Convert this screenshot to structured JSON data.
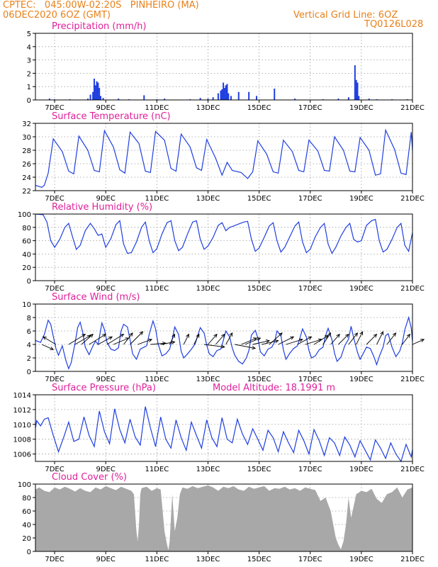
{
  "header": {
    "line1": "CPTEC:   045:00W-02:20S   PINHEIRO (MA)",
    "line2": "06DEC2020 6OZ (GMT)",
    "vgrid": "Vertical Grid Line: 6OZ",
    "code": "TQ0126L028"
  },
  "colors": {
    "header": "#e8801a",
    "title": "#e0209a",
    "series": "#1f3fe0",
    "cloud": "#a8a8a8",
    "axis": "#000000"
  },
  "x_axis": {
    "start_day": 6.25,
    "end_day": 21,
    "tick_days": [
      7,
      9,
      11,
      13,
      15,
      17,
      19,
      21
    ],
    "tick_labels": [
      "7DEC",
      "9DEC",
      "11DEC",
      "13DEC",
      "15DEC",
      "17DEC",
      "19DEC",
      "21DEC"
    ]
  },
  "chart_data": [
    {
      "type": "bar",
      "title": "Precipitation (mm/h)",
      "ylim": [
        0,
        5
      ],
      "yticks": [
        0,
        1,
        2,
        3,
        4,
        5
      ],
      "grid": true,
      "x": [
        6.8,
        7.0,
        7.6,
        8.3,
        8.4,
        8.5,
        8.55,
        8.6,
        8.65,
        8.7,
        8.75,
        8.8,
        8.9,
        9.5,
        9.9,
        10.5,
        11.0,
        11.3,
        12.3,
        12.7,
        13.0,
        13.2,
        13.4,
        13.5,
        13.55,
        13.6,
        13.65,
        13.7,
        13.75,
        13.8,
        13.9,
        14.2,
        14.6,
        14.9,
        15.6,
        16.4,
        17.5,
        18.1,
        18.5,
        18.75,
        18.8,
        18.85,
        18.9,
        19.3,
        19.6,
        20.2,
        20.8
      ],
      "y": [
        0.1,
        0.05,
        0.05,
        0.1,
        0.4,
        0.6,
        1.6,
        1.1,
        1.4,
        1.3,
        0.9,
        0.3,
        0.15,
        0.1,
        0.05,
        0.35,
        0.05,
        0.1,
        0.05,
        0.15,
        0.1,
        0.2,
        0.5,
        0.7,
        0.8,
        1.3,
        0.9,
        1.1,
        1.2,
        0.5,
        0.3,
        0.6,
        0.6,
        0.3,
        0.85,
        0.1,
        0.05,
        0.1,
        0.2,
        2.6,
        1.5,
        1.3,
        0.3,
        0.1,
        0.05,
        0.05,
        0.05
      ]
    },
    {
      "type": "line",
      "title": "Surface Temperature (nC)",
      "ylim": [
        22,
        32
      ],
      "yticks": [
        22,
        24,
        26,
        28,
        30,
        32
      ],
      "grid": true,
      "x": [
        6.25,
        6.5,
        6.6,
        6.75,
        6.95,
        7.3,
        7.55,
        7.75,
        7.95,
        8.3,
        8.55,
        8.75,
        8.95,
        9.3,
        9.55,
        9.75,
        9.95,
        10.3,
        10.55,
        10.75,
        10.95,
        11.3,
        11.55,
        11.75,
        11.95,
        12.3,
        12.55,
        12.75,
        12.95,
        13.3,
        13.55,
        13.75,
        13.95,
        14.3,
        14.55,
        14.75,
        14.95,
        15.3,
        15.55,
        15.75,
        15.95,
        16.3,
        16.55,
        16.75,
        16.95,
        17.3,
        17.55,
        17.75,
        17.95,
        18.3,
        18.55,
        18.75,
        18.95,
        19.3,
        19.55,
        19.75,
        19.95,
        20.3,
        20.55,
        20.75,
        20.95,
        21.0
      ],
      "y": [
        22.8,
        22.5,
        22.8,
        24.6,
        29.7,
        27.8,
        24.9,
        24.5,
        30.1,
        28.0,
        25.0,
        24.8,
        30.9,
        28.5,
        25.1,
        24.6,
        30.7,
        29.0,
        24.9,
        24.7,
        30.8,
        29.5,
        25.3,
        24.9,
        30.4,
        28.5,
        25.4,
        25.0,
        29.6,
        26.8,
        24.3,
        26.2,
        25.0,
        24.7,
        23.8,
        24.8,
        29.4,
        27.4,
        24.8,
        24.6,
        29.5,
        27.8,
        25.0,
        24.8,
        29.5,
        27.9,
        25.0,
        24.9,
        30.0,
        28.0,
        24.9,
        24.8,
        29.9,
        28.0,
        24.3,
        24.5,
        31.0,
        28.1,
        24.6,
        24.4,
        30.7,
        28.0
      ]
    },
    {
      "type": "line",
      "title": "Relative Humidity (%)",
      "ylim": [
        0,
        100
      ],
      "yticks": [
        0,
        20,
        40,
        60,
        80,
        100
      ],
      "grid": true,
      "x": [
        6.25,
        6.55,
        6.7,
        6.85,
        7.0,
        7.2,
        7.4,
        7.55,
        7.7,
        7.85,
        8.0,
        8.2,
        8.4,
        8.55,
        8.7,
        8.85,
        9.0,
        9.2,
        9.4,
        9.55,
        9.7,
        9.85,
        10.0,
        10.2,
        10.4,
        10.55,
        10.7,
        10.85,
        11.0,
        11.2,
        11.4,
        11.55,
        11.7,
        11.85,
        12.0,
        12.2,
        12.4,
        12.55,
        12.7,
        12.85,
        13.0,
        13.2,
        13.4,
        13.55,
        13.7,
        13.85,
        14.0,
        14.2,
        14.4,
        14.55,
        14.7,
        14.85,
        15.0,
        15.2,
        15.4,
        15.55,
        15.7,
        15.85,
        16.0,
        16.2,
        16.4,
        16.55,
        16.7,
        16.85,
        17.0,
        17.2,
        17.4,
        17.55,
        17.7,
        17.85,
        18.0,
        18.2,
        18.4,
        18.55,
        18.7,
        18.85,
        19.0,
        19.2,
        19.4,
        19.55,
        19.7,
        19.85,
        20.0,
        20.2,
        20.4,
        20.55,
        20.7,
        20.85,
        21.0
      ],
      "y": [
        100,
        99,
        88,
        60,
        50,
        62,
        80,
        86,
        66,
        47,
        53,
        75,
        86,
        78,
        68,
        70,
        50,
        63,
        84,
        90,
        55,
        41,
        42,
        58,
        80,
        88,
        60,
        42,
        48,
        70,
        87,
        90,
        60,
        45,
        50,
        70,
        88,
        90,
        62,
        47,
        52,
        65,
        83,
        87,
        75,
        80,
        82,
        85,
        88,
        89,
        62,
        44,
        49,
        65,
        82,
        87,
        60,
        43,
        50,
        66,
        82,
        88,
        58,
        42,
        47,
        66,
        80,
        86,
        55,
        41,
        50,
        67,
        80,
        86,
        62,
        58,
        60,
        83,
        90,
        92,
        60,
        43,
        47,
        62,
        80,
        86,
        53,
        44,
        72
      ]
    },
    {
      "type": "line",
      "title": "Surface Wind (m/s)",
      "ylim": [
        0,
        10
      ],
      "yticks": [
        0,
        2,
        4,
        6,
        8,
        10
      ],
      "grid": true,
      "x": [
        6.25,
        6.45,
        6.6,
        6.75,
        6.85,
        6.95,
        7.05,
        7.15,
        7.3,
        7.45,
        7.55,
        7.65,
        7.8,
        7.9,
        8.0,
        8.1,
        8.2,
        8.35,
        8.5,
        8.6,
        8.7,
        8.85,
        8.95,
        9.05,
        9.2,
        9.35,
        9.5,
        9.6,
        9.7,
        9.85,
        9.95,
        10.05,
        10.2,
        10.35,
        10.5,
        10.6,
        10.7,
        10.85,
        10.95,
        11.05,
        11.2,
        11.35,
        11.5,
        11.6,
        11.7,
        11.85,
        11.95,
        12.05,
        12.2,
        12.35,
        12.5,
        12.6,
        12.7,
        12.85,
        12.95,
        13.05,
        13.2,
        13.35,
        13.5,
        13.6,
        13.7,
        13.85,
        13.95,
        14.05,
        14.2,
        14.35,
        14.5,
        14.6,
        14.7,
        14.85,
        14.95,
        15.05,
        15.2,
        15.35,
        15.5,
        15.6,
        15.7,
        15.85,
        15.95,
        16.05,
        16.2,
        16.35,
        16.5,
        16.6,
        16.7,
        16.85,
        16.95,
        17.05,
        17.2,
        17.35,
        17.5,
        17.6,
        17.7,
        17.85,
        17.95,
        18.05,
        18.2,
        18.35,
        18.5,
        18.6,
        18.7,
        18.85,
        18.95,
        19.05,
        19.2,
        19.35,
        19.5,
        19.6,
        19.7,
        19.85,
        19.95,
        20.05,
        20.2,
        20.35,
        20.5,
        20.6,
        20.7,
        20.85,
        20.95,
        21.0
      ],
      "y": [
        4.6,
        4.3,
        5.5,
        7.6,
        7.0,
        5.2,
        3.4,
        2.4,
        3.8,
        1.5,
        0.4,
        1.3,
        4.2,
        6.5,
        7.3,
        5.8,
        3.6,
        2.5,
        3.8,
        4.5,
        4.0,
        7.2,
        6.2,
        4.3,
        3.3,
        3.1,
        3.5,
        6.0,
        7.0,
        6.6,
        4.7,
        2.6,
        1.8,
        3.3,
        3.6,
        3.8,
        5.5,
        7.5,
        6.3,
        4.1,
        2.3,
        2.6,
        3.3,
        4.8,
        6.6,
        5.5,
        3.0,
        2.0,
        2.6,
        3.3,
        4.1,
        5.3,
        6.5,
        5.7,
        3.9,
        2.6,
        2.2,
        3.1,
        3.3,
        4.6,
        6.0,
        5.1,
        3.5,
        2.4,
        1.5,
        1.1,
        2.0,
        3.1,
        5.4,
        6.1,
        5.0,
        2.9,
        2.3,
        3.3,
        3.6,
        4.3,
        6.0,
        5.3,
        3.2,
        1.8,
        2.7,
        3.4,
        3.8,
        5.0,
        6.3,
        5.1,
        3.1,
        2.0,
        2.3,
        3.2,
        3.6,
        5.3,
        6.4,
        4.7,
        2.7,
        1.5,
        2.1,
        3.8,
        4.8,
        6.7,
        5.0,
        2.8,
        1.8,
        2.5,
        3.6,
        3.4,
        2.1,
        1.0,
        2.2,
        3.6,
        5.3,
        5.6,
        3.6,
        2.2,
        3.0,
        4.2,
        6.2,
        8.0,
        6.5,
        4.4
      ],
      "arrows": {
        "x": [
          6.5,
          7.05,
          7.55,
          7.8,
          8.05,
          8.35,
          8.7,
          9.05,
          9.3,
          9.7,
          9.95,
          10.25,
          10.75,
          11.15,
          11.5,
          12.05,
          12.45,
          12.85,
          13.0,
          13.3,
          13.7,
          14.05,
          14.3,
          14.45,
          14.75,
          15.1,
          15.4,
          15.75,
          16.05,
          16.5,
          16.8,
          17.15,
          17.5,
          17.8,
          18.1,
          18.5,
          18.8,
          19.2,
          19.6,
          20.0,
          20.6,
          21.0
        ],
        "u": [
          0.9,
          -1.0,
          1.3,
          1.2,
          0.9,
          1.3,
          1.1,
          1.3,
          1.2,
          0.7,
          1.0,
          1.1,
          1.2,
          1.1,
          0.4,
          0.4,
          0.4,
          1.6,
          0.7,
          0.7,
          0.5,
          1.6,
          1.2,
          1.2,
          1.3,
          1.3,
          1.0,
          1.2,
          1.3,
          1.1,
          1.3,
          1.1,
          0.6,
          0.7,
          0.8,
          0.7,
          0.5,
          0.8,
          0.5,
          0.7,
          0.6,
          0.9
        ],
        "v": [
          -0.4,
          0.6,
          0.8,
          0.7,
          0.8,
          0.8,
          0.6,
          0.8,
          0.5,
          0.9,
          1.0,
          0.4,
          0.1,
          0.2,
          0.8,
          0.8,
          0.8,
          -0.2,
          0.8,
          0.8,
          0.9,
          -0.3,
          0.5,
          0.5,
          0.3,
          0.3,
          0.9,
          0.6,
          0.4,
          0.6,
          0.4,
          0.7,
          0.9,
          0.8,
          0.8,
          0.9,
          1.0,
          0.8,
          1.0,
          0.9,
          0.8,
          0.4
        ]
      }
    },
    {
      "type": "line",
      "title": "Surface Pressure (hPa)",
      "annotation": "Model Altitude: 18.1991 m",
      "ylim": [
        1005,
        1014
      ],
      "yticks": [
        1006,
        1008,
        1010,
        1012,
        1014
      ],
      "grid": true,
      "x": [
        6.25,
        6.3,
        6.45,
        6.6,
        6.75,
        6.95,
        7.15,
        7.35,
        7.55,
        7.75,
        7.95,
        8.15,
        8.35,
        8.55,
        8.75,
        8.95,
        9.15,
        9.35,
        9.55,
        9.75,
        9.95,
        10.15,
        10.35,
        10.55,
        10.75,
        10.95,
        11.15,
        11.35,
        11.55,
        11.75,
        11.95,
        12.15,
        12.35,
        12.55,
        12.75,
        12.95,
        13.15,
        13.35,
        13.55,
        13.75,
        13.95,
        14.15,
        14.35,
        14.55,
        14.75,
        14.95,
        15.15,
        15.35,
        15.55,
        15.75,
        15.95,
        16.15,
        16.35,
        16.55,
        16.75,
        16.95,
        17.15,
        17.35,
        17.55,
        17.75,
        17.95,
        18.15,
        18.35,
        18.55,
        18.75,
        18.95,
        19.15,
        19.35,
        19.55,
        19.75,
        19.95,
        20.15,
        20.35,
        20.55,
        20.75,
        20.95,
        21.0
      ],
      "y": [
        1009.5,
        1010.5,
        1009.8,
        1010.7,
        1010.9,
        1008.5,
        1006.3,
        1008.2,
        1010.3,
        1007.7,
        1008.0,
        1011.0,
        1008.5,
        1007.0,
        1011.8,
        1009.0,
        1007.4,
        1012.1,
        1009.3,
        1007.5,
        1010.7,
        1008.3,
        1007.2,
        1012.4,
        1009.5,
        1007.0,
        1011.0,
        1008.0,
        1006.8,
        1010.6,
        1008.2,
        1006.5,
        1010.3,
        1008.5,
        1006.8,
        1010.6,
        1008.2,
        1007.0,
        1010.9,
        1008.0,
        1007.5,
        1010.7,
        1008.7,
        1007.3,
        1009.4,
        1008.0,
        1006.5,
        1009.2,
        1008.2,
        1006.3,
        1009.0,
        1007.5,
        1006.2,
        1009.2,
        1007.8,
        1006.0,
        1009.3,
        1007.8,
        1005.8,
        1008.2,
        1007.5,
        1005.8,
        1008.3,
        1007.2,
        1005.6,
        1007.8,
        1006.5,
        1005.2,
        1007.9,
        1006.8,
        1005.4,
        1007.5,
        1006.0,
        1005.0,
        1007.3,
        1005.6,
        1006.6
      ]
    },
    {
      "type": "area",
      "title": "Cloud Cover (%)",
      "ylim": [
        0,
        100
      ],
      "yticks": [
        0,
        20,
        40,
        60,
        80,
        100
      ],
      "grid": true,
      "x": [
        6.25,
        6.4,
        6.6,
        6.8,
        7.0,
        7.2,
        7.4,
        7.6,
        7.8,
        8.0,
        8.2,
        8.4,
        8.6,
        8.8,
        9.0,
        9.2,
        9.4,
        9.6,
        9.8,
        10.0,
        10.1,
        10.2,
        10.25,
        10.3,
        10.35,
        10.4,
        10.6,
        10.8,
        11.0,
        11.15,
        11.3,
        11.4,
        11.45,
        11.5,
        11.6,
        11.7,
        11.8,
        11.9,
        12.0,
        12.2,
        12.4,
        12.6,
        12.8,
        13.0,
        13.2,
        13.4,
        13.6,
        13.8,
        14.0,
        14.2,
        14.4,
        14.6,
        14.8,
        15.0,
        15.2,
        15.4,
        15.6,
        15.8,
        16.0,
        16.2,
        16.4,
        16.6,
        16.8,
        17.0,
        17.2,
        17.4,
        17.6,
        17.8,
        17.9,
        18.0,
        18.1,
        18.2,
        18.3,
        18.4,
        18.5,
        18.6,
        18.8,
        19.0,
        19.2,
        19.4,
        19.6,
        19.8,
        20.0,
        20.2,
        20.4,
        20.6,
        20.8,
        21.0
      ],
      "y": [
        92,
        95,
        90,
        88,
        95,
        92,
        96,
        93,
        89,
        94,
        90,
        88,
        95,
        92,
        97,
        94,
        91,
        96,
        93,
        90,
        85,
        30,
        15,
        40,
        85,
        94,
        96,
        90,
        94,
        92,
        30,
        10,
        2,
        15,
        85,
        30,
        50,
        85,
        95,
        93,
        97,
        94,
        96,
        98,
        95,
        90,
        96,
        94,
        97,
        92,
        90,
        96,
        93,
        95,
        97,
        90,
        94,
        93,
        96,
        92,
        94,
        90,
        95,
        93,
        91,
        75,
        80,
        60,
        40,
        20,
        10,
        3,
        15,
        40,
        80,
        50,
        85,
        90,
        88,
        93,
        78,
        72,
        85,
        88,
        95,
        80,
        92,
        95
      ]
    }
  ]
}
